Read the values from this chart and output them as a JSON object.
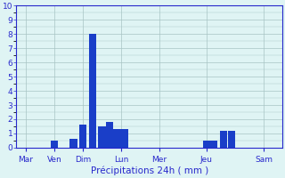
{
  "title": "",
  "xlabel": "Précipitations 24h ( mm )",
  "ylabel": "",
  "background_color": "#dff4f4",
  "bar_color": "#1a3ec8",
  "grid_color": "#a8c4c4",
  "axis_color": "#2828cc",
  "tick_label_color": "#2828cc",
  "xlabel_color": "#2828cc",
  "ylim": [
    0,
    10
  ],
  "yticks": [
    0,
    1,
    2,
    3,
    4,
    5,
    6,
    7,
    8,
    9,
    10
  ],
  "xlim": [
    0,
    14
  ],
  "bar_positions": [
    2.0,
    3.0,
    3.5,
    4.0,
    4.5,
    4.9,
    5.3,
    5.7,
    10.0,
    10.4,
    10.9,
    11.3
  ],
  "bar_heights": [
    0.5,
    0.6,
    1.6,
    8.0,
    1.5,
    1.8,
    1.3,
    1.3,
    0.5,
    0.5,
    1.2,
    1.2
  ],
  "bar_width": 0.38,
  "xtick_positions": [
    0.5,
    2.0,
    3.5,
    5.5,
    7.5,
    10.0,
    13.0
  ],
  "xtick_labels": [
    "Mar",
    "Ven",
    "Dim",
    "Lun",
    "Mer",
    "Jeu",
    "Sam"
  ]
}
